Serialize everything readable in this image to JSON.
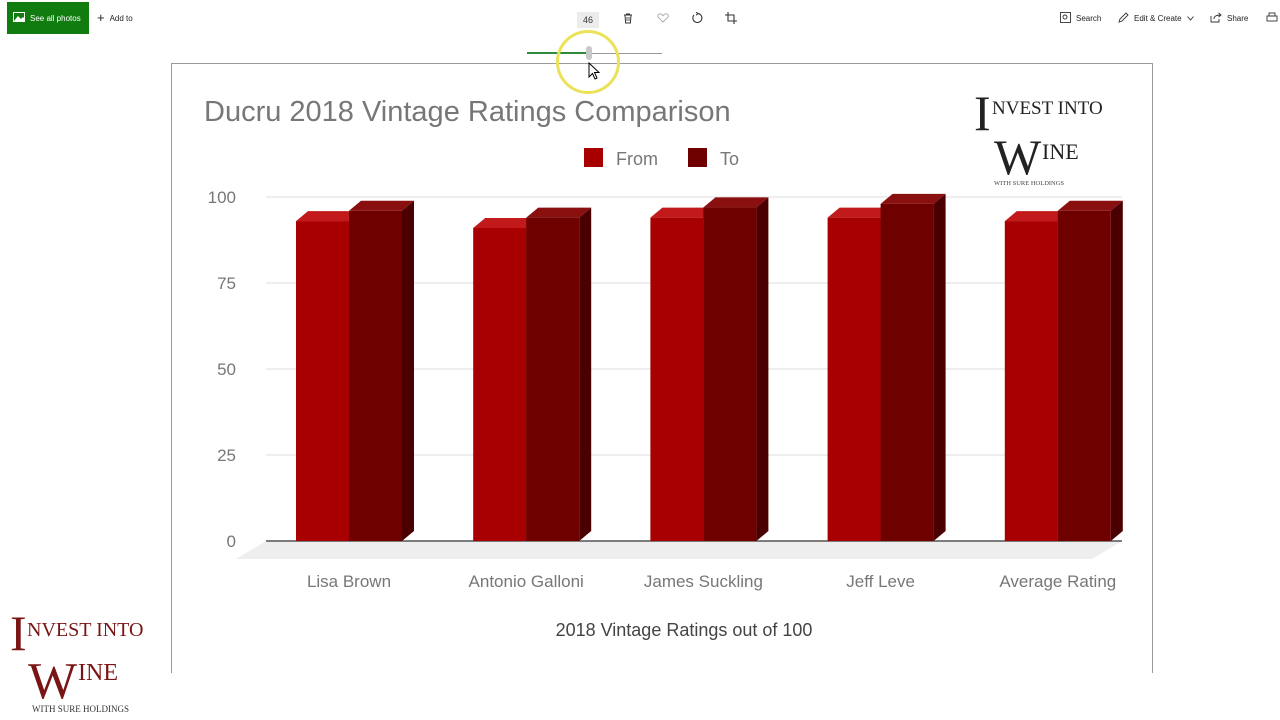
{
  "toolbar": {
    "see_all_photos": "See all photos",
    "add_to": "Add to",
    "zoom_value": "46",
    "zoom_fraction": 0.46,
    "search": "Search",
    "edit_create": "Edit & Create",
    "share": "Share"
  },
  "logo": {
    "line1_big": "I",
    "line1_rest": "NVEST INTO",
    "line2_big": "W",
    "line2_rest": "INE",
    "tagline": "WITH SURE HOLDINGS"
  },
  "colors": {
    "accent_green": "#107c10",
    "bar_from": "#a80000",
    "bar_to": "#6e0000",
    "logo_red": "#7a1515"
  },
  "chart_data": {
    "type": "bar",
    "title": "Ducru 2018 Vintage Ratings Comparison",
    "xlabel": "2018 Vintage Ratings out of 100",
    "ylabel": "",
    "categories": [
      "Lisa Brown",
      "Antonio Galloni",
      "James Suckling",
      "Jeff Leve",
      "Average Rating"
    ],
    "series": [
      {
        "name": "From",
        "values": [
          93,
          91,
          94,
          94,
          93
        ],
        "color": "#a80000"
      },
      {
        "name": "To",
        "values": [
          96,
          94,
          97,
          98,
          96
        ],
        "color": "#6e0000"
      }
    ],
    "yticks": [
      0,
      25,
      50,
      75,
      100
    ],
    "ylim": [
      0,
      100
    ],
    "legend": "top",
    "grid": true
  }
}
